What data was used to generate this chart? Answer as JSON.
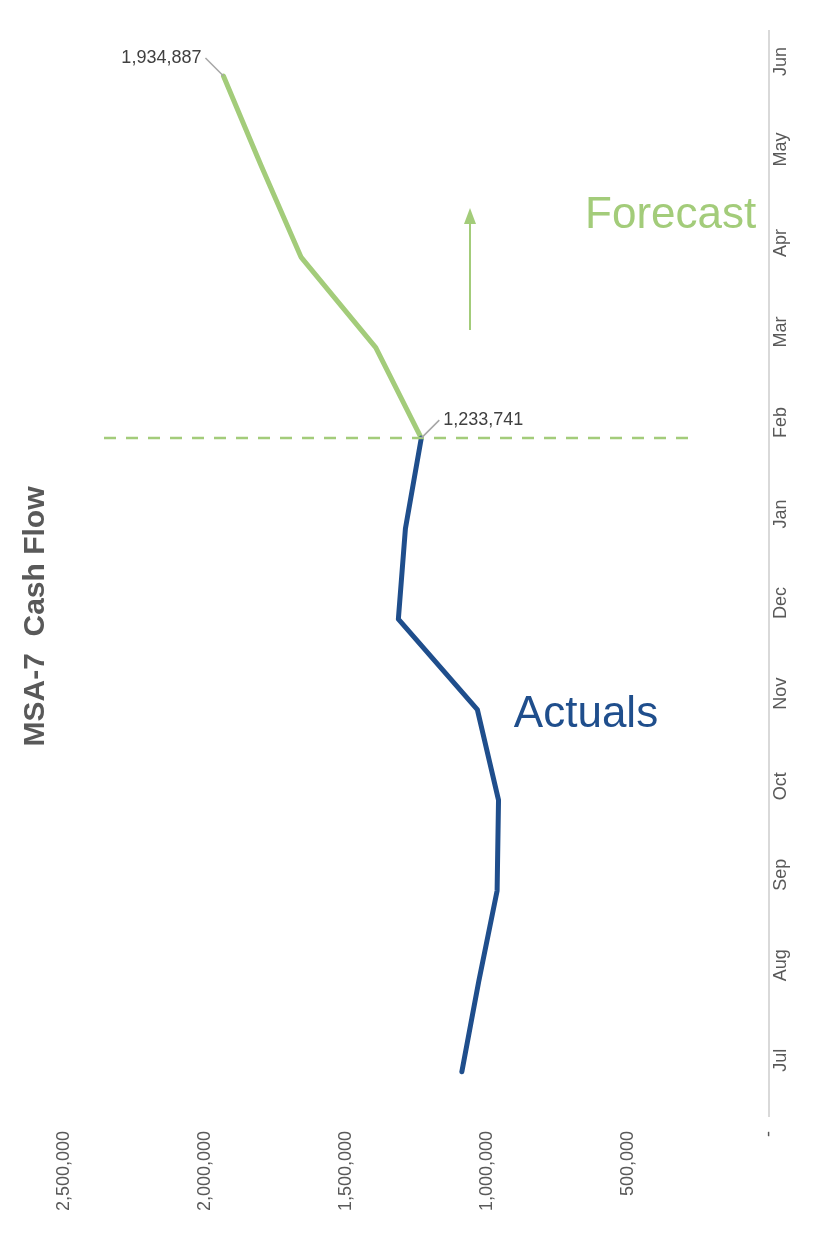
{
  "chart_data": {
    "type": "line",
    "orientation": "horizontal",
    "title": "MSA-7  Cash Flow",
    "categories": [
      "Jun",
      "May",
      "Apr",
      "Mar",
      "Feb",
      "Jan",
      "Dec",
      "Nov",
      "Oct",
      "Sep",
      "Aug",
      "Jul"
    ],
    "series": [
      {
        "name": "Actuals",
        "color": "#1f4e8c",
        "values": [
          null,
          null,
          null,
          null,
          1233741,
          1290000,
          1315000,
          1035000,
          960000,
          965000,
          1030000,
          1090000
        ]
      },
      {
        "name": "Forecast",
        "color": "#a3cc7a",
        "values": [
          1934887,
          1800000,
          1660000,
          1395000,
          1233741,
          null,
          null,
          null,
          null,
          null,
          null,
          null
        ],
        "value_labels": [
          "1,934,887",
          null,
          null,
          null,
          "1,233,741",
          null,
          null,
          null,
          null,
          null,
          null,
          null
        ]
      }
    ],
    "xlim": [
      2500000,
      0
    ],
    "xticks": [
      {
        "value": 0,
        "label": "-"
      },
      {
        "value": 500000,
        "label": "500,000"
      },
      {
        "value": 1000000,
        "label": "1,000,000"
      },
      {
        "value": 1500000,
        "label": "1,500,000"
      },
      {
        "value": 2000000,
        "label": "2,000,000"
      },
      {
        "value": 2500000,
        "label": "2,500,000"
      }
    ],
    "ref_lines": [
      {
        "axis": "y",
        "value": "Feb",
        "color": "#a3cc7a",
        "line_style": "dashed"
      }
    ],
    "grid": false,
    "legend": false,
    "marker": "none",
    "line_style": "solid"
  }
}
